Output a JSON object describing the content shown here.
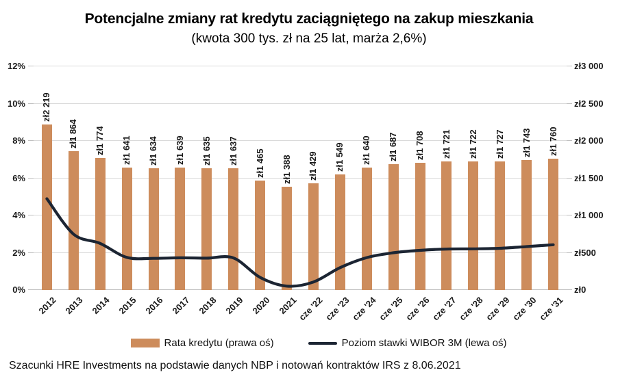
{
  "title": "Potencjalne zmiany rat kredytu zaciągniętego na zakup mieszkania",
  "subtitle": "(kwota 300 tys. zł na 25 lat, marża 2,6%)",
  "source_note": "Szacunki HRE Investments na podstawie danych NBP i notowań kontraktów IRS z 8.06.2021",
  "legend": {
    "position": "bottom",
    "items": [
      {
        "label": "Rata kredytu (prawa oś)",
        "marker": "bar"
      },
      {
        "label": "Poziom stawki WIBOR 3M (lewa oś)",
        "marker": "line"
      }
    ]
  },
  "colors": {
    "bar": "#cd8c5c",
    "line": "#1c2533",
    "gridline": "#d9d9d9",
    "axis": "#bfbfbf",
    "text": "#1a1a1a"
  },
  "chart_data": {
    "type": "combo bar+line",
    "grid": "horizontal",
    "legend_position": "bottom",
    "categories": [
      "2012",
      "2013",
      "2014",
      "2015",
      "2016",
      "2017",
      "2018",
      "2019",
      "2020",
      "2021",
      "cze '22",
      "cze '23",
      "cze '24",
      "cze '25",
      "cze '26",
      "cze '27",
      "cze '28",
      "cze '29",
      "cze '30",
      "cze '31"
    ],
    "series": [
      {
        "name": "Rata kredytu (prawa oś)",
        "type": "bar",
        "axis": "right",
        "unit": "zł",
        "values": [
          2219,
          1864,
          1774,
          1641,
          1634,
          1639,
          1635,
          1637,
          1465,
          1388,
          1429,
          1549,
          1640,
          1687,
          1708,
          1721,
          1722,
          1727,
          1743,
          1760
        ],
        "data_labels": [
          "zł2 219",
          "zł1 864",
          "zł1 774",
          "zł1 641",
          "zł1 634",
          "zł1 639",
          "zł1 635",
          "zł1 637",
          "zł1 465",
          "zł1 388",
          "zł1 429",
          "zł1 549",
          "zł1 640",
          "zł1 687",
          "zł1 708",
          "zł1 721",
          "zł1 722",
          "zł1 727",
          "zł1 743",
          "zł1 760"
        ]
      },
      {
        "name": "Poziom stawki WIBOR 3M (lewa oś)",
        "type": "line",
        "axis": "left",
        "unit": "%",
        "values": [
          4.9,
          3.0,
          2.5,
          1.75,
          1.7,
          1.73,
          1.71,
          1.72,
          0.68,
          0.21,
          0.43,
          1.2,
          1.74,
          2.0,
          2.13,
          2.2,
          2.21,
          2.24,
          2.33,
          2.43
        ]
      }
    ],
    "left_axis": {
      "unit": "%",
      "min": 0,
      "max": 12,
      "ticks": [
        "0%",
        "2%",
        "4%",
        "6%",
        "8%",
        "10%",
        "12%"
      ]
    },
    "right_axis": {
      "unit": "zł",
      "min": 0,
      "max": 3000,
      "ticks": [
        "zł0",
        "zł500",
        "zł1 000",
        "zł1 500",
        "zł2 000",
        "zł2 500",
        "zł3 000"
      ]
    }
  }
}
